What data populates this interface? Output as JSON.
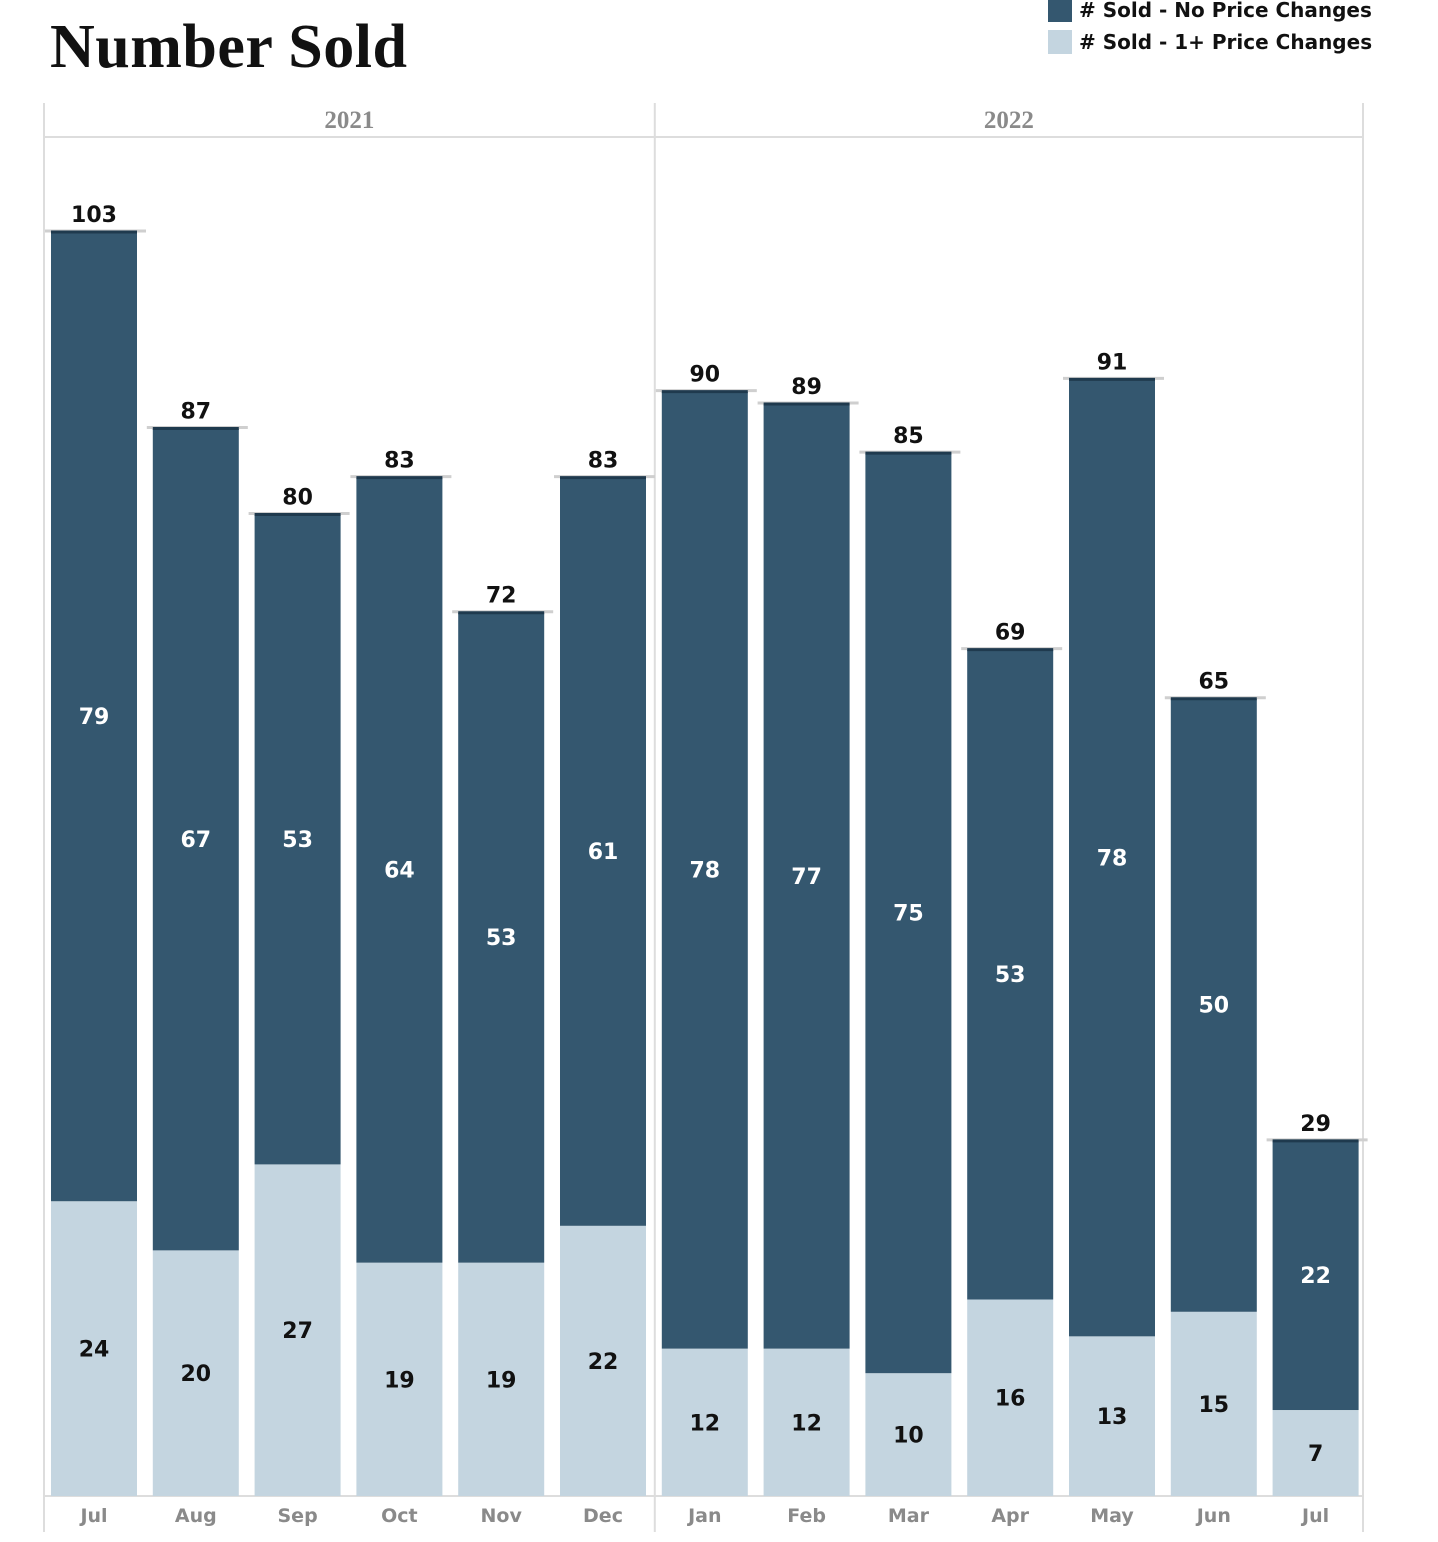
{
  "colors": {
    "no_change": "#34576f",
    "with_change": "#c4d5e0",
    "axis_text": "#8a8a8a",
    "grid": "#dddddd"
  },
  "legend": {
    "items": [
      {
        "label": "# Sold - No Price Changes",
        "color": "#34576f"
      },
      {
        "label": "# Sold - 1+ Price Changes",
        "color": "#c4d5e0"
      }
    ]
  },
  "chart_data": {
    "type": "bar",
    "stacked": true,
    "title": "Number Sold",
    "panels": [
      {
        "label": "2021",
        "categories": [
          "Jul",
          "Aug",
          "Sep",
          "Oct",
          "Nov",
          "Dec"
        ]
      },
      {
        "label": "2022",
        "categories": [
          "Jan",
          "Feb",
          "Mar",
          "Apr",
          "May",
          "Jun",
          "Jul"
        ]
      }
    ],
    "categories": [
      "Jul",
      "Aug",
      "Sep",
      "Oct",
      "Nov",
      "Dec",
      "Jan",
      "Feb",
      "Mar",
      "Apr",
      "May",
      "Jun",
      "Jul"
    ],
    "series": [
      {
        "name": "# Sold - 1+ Price Changes",
        "values": [
          24,
          20,
          27,
          19,
          19,
          22,
          12,
          12,
          10,
          16,
          13,
          15,
          7
        ]
      },
      {
        "name": "# Sold - No Price Changes",
        "values": [
          79,
          67,
          53,
          64,
          53,
          61,
          78,
          77,
          75,
          53,
          78,
          50,
          22
        ]
      }
    ],
    "totals": [
      103,
      87,
      80,
      83,
      72,
      83,
      90,
      89,
      85,
      69,
      91,
      65,
      29
    ],
    "ylim": [
      0,
      103
    ],
    "legend_position": "top-right",
    "xlabel": "",
    "ylabel": ""
  }
}
